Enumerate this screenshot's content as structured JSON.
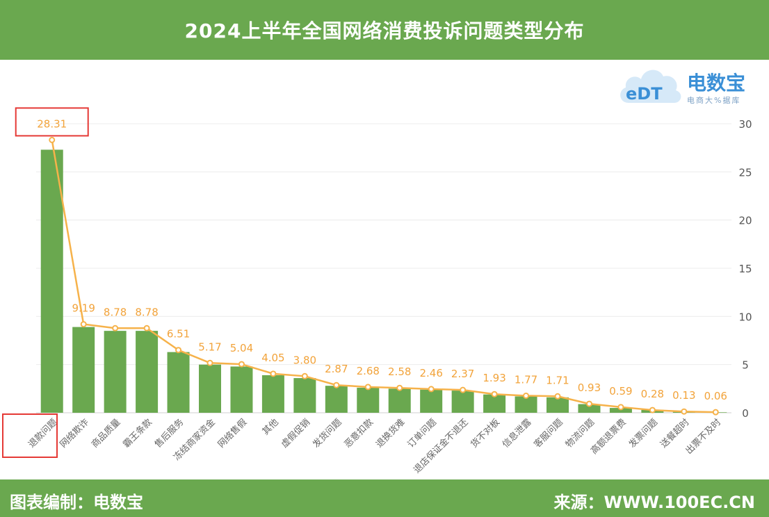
{
  "header": {
    "title": "2024上半年全国网络消费投诉问题类型分布"
  },
  "footer": {
    "left": "图表编制：电数宝",
    "right": "来源：WWW.100EC.CN"
  },
  "logo": {
    "mark": "eDT",
    "name": "电数宝",
    "tagline": "电商大%据库"
  },
  "colors": {
    "header_bg": "#6aa84f",
    "bar": "#6aa84f",
    "line": "#f6b24a",
    "label": "#f2a33a",
    "highlight": "#e53935",
    "logo_blue": "#3a8fd6"
  },
  "chart_data": {
    "type": "bar",
    "overlay": "line",
    "title": "",
    "xlabel": "",
    "ylabel": "",
    "ylim": [
      0,
      30
    ],
    "yticks": [
      0,
      5,
      10,
      15,
      20,
      25,
      30
    ],
    "y_axis_side": "right",
    "grid": true,
    "categories": [
      "退款问题",
      "网络欺诈",
      "商品质量",
      "霸王条款",
      "售后服务",
      "冻结商家资金",
      "网络售假",
      "其他",
      "虚假促销",
      "发货问题",
      "恶意扣款",
      "退换货难",
      "订单问题",
      "退店保证金不退还",
      "货不对板",
      "信息泄露",
      "客服问题",
      "物流问题",
      "高额退票费",
      "发票问题",
      "送餐超时",
      "出票不及时"
    ],
    "values": [
      28.31,
      9.19,
      8.78,
      8.78,
      6.51,
      5.17,
      5.04,
      4.05,
      3.8,
      2.87,
      2.68,
      2.58,
      2.46,
      2.37,
      1.93,
      1.77,
      1.71,
      0.93,
      0.59,
      0.28,
      0.13,
      0.06
    ],
    "bar_values": [
      27.3,
      8.9,
      8.5,
      8.5,
      6.3,
      5.0,
      4.8,
      3.9,
      3.6,
      2.8,
      2.6,
      2.5,
      2.4,
      2.3,
      1.9,
      1.7,
      1.6,
      0.9,
      0.5,
      0.3,
      0.1,
      0.05
    ],
    "labels": [
      "28.31",
      "9.19",
      "8.78",
      "8.78",
      "6.51",
      "5.17",
      "5.04",
      "4.05",
      "3.80",
      "2.87",
      "2.68",
      "2.58",
      "2.46",
      "2.37",
      "1.93",
      "1.77",
      "1.71",
      "0.93",
      "0.59",
      "0.28",
      "0.13",
      "0.06"
    ],
    "highlighted": [
      0
    ]
  }
}
